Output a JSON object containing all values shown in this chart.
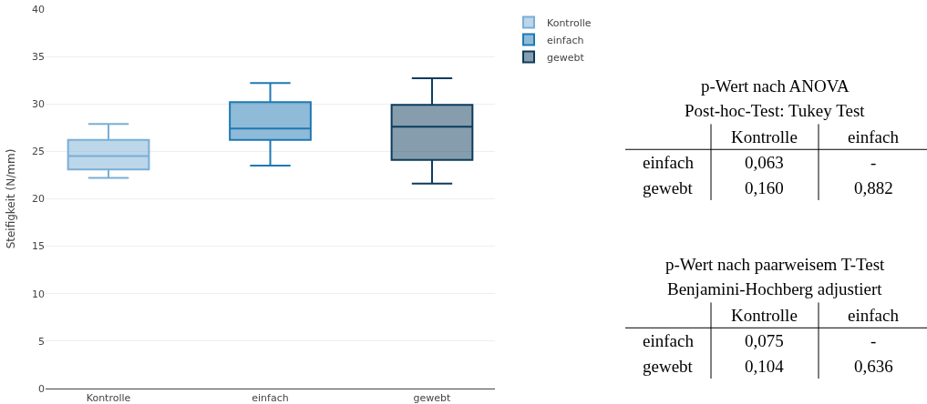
{
  "chart_data": [
    {
      "type": "box",
      "ylabel": "Steifigkeit (N/mm)",
      "categories": [
        "Kontrolle",
        "einfach",
        "gewebt"
      ],
      "ylim": [
        0,
        40
      ],
      "yticks": [
        0,
        5,
        10,
        15,
        20,
        25,
        30,
        35,
        40
      ],
      "grid": "y",
      "legend": "top right",
      "series": [
        {
          "name": "Kontrolle",
          "color": "#7aaed6",
          "x": [
            "Kontrolle"
          ],
          "boxes": [
            {
              "low": 22.2,
              "q1": 23.1,
              "median": 24.5,
              "q3": 26.2,
              "high": 27.9
            }
          ]
        },
        {
          "name": "einfach",
          "color": "#1f78b4",
          "x": [
            "einfach"
          ],
          "boxes": [
            {
              "low": 23.5,
              "q1": 26.2,
              "median": 27.4,
              "q3": 30.2,
              "high": 32.2
            }
          ]
        },
        {
          "name": "gewebt",
          "color": "#0d3b5c",
          "x": [
            "gewebt"
          ],
          "boxes": [
            {
              "low": 21.6,
              "q1": 24.1,
              "median": 27.6,
              "q3": 29.9,
              "high": 32.7
            }
          ]
        }
      ]
    },
    {
      "type": "other",
      "title": "p-Wert nach ANOVA",
      "subtitle": "Post-hoc-Test: Tukey Test",
      "categories": [
        "Kontrolle",
        "einfach"
      ],
      "y_categories": [
        "einfach",
        "gewebt"
      ],
      "cell_labels": [
        [
          "0,063",
          "-"
        ],
        [
          "0,160",
          "0,882"
        ]
      ]
    },
    {
      "type": "other",
      "title": "p-Wert nach paarweisem T-Test",
      "subtitle": "Benjamini-Hochberg adjustiert",
      "categories": [
        "Kontrolle",
        "einfach"
      ],
      "y_categories": [
        "einfach",
        "gewebt"
      ],
      "cell_labels": [
        [
          "0,075",
          "-"
        ],
        [
          "0,104",
          "0,636"
        ]
      ]
    }
  ]
}
